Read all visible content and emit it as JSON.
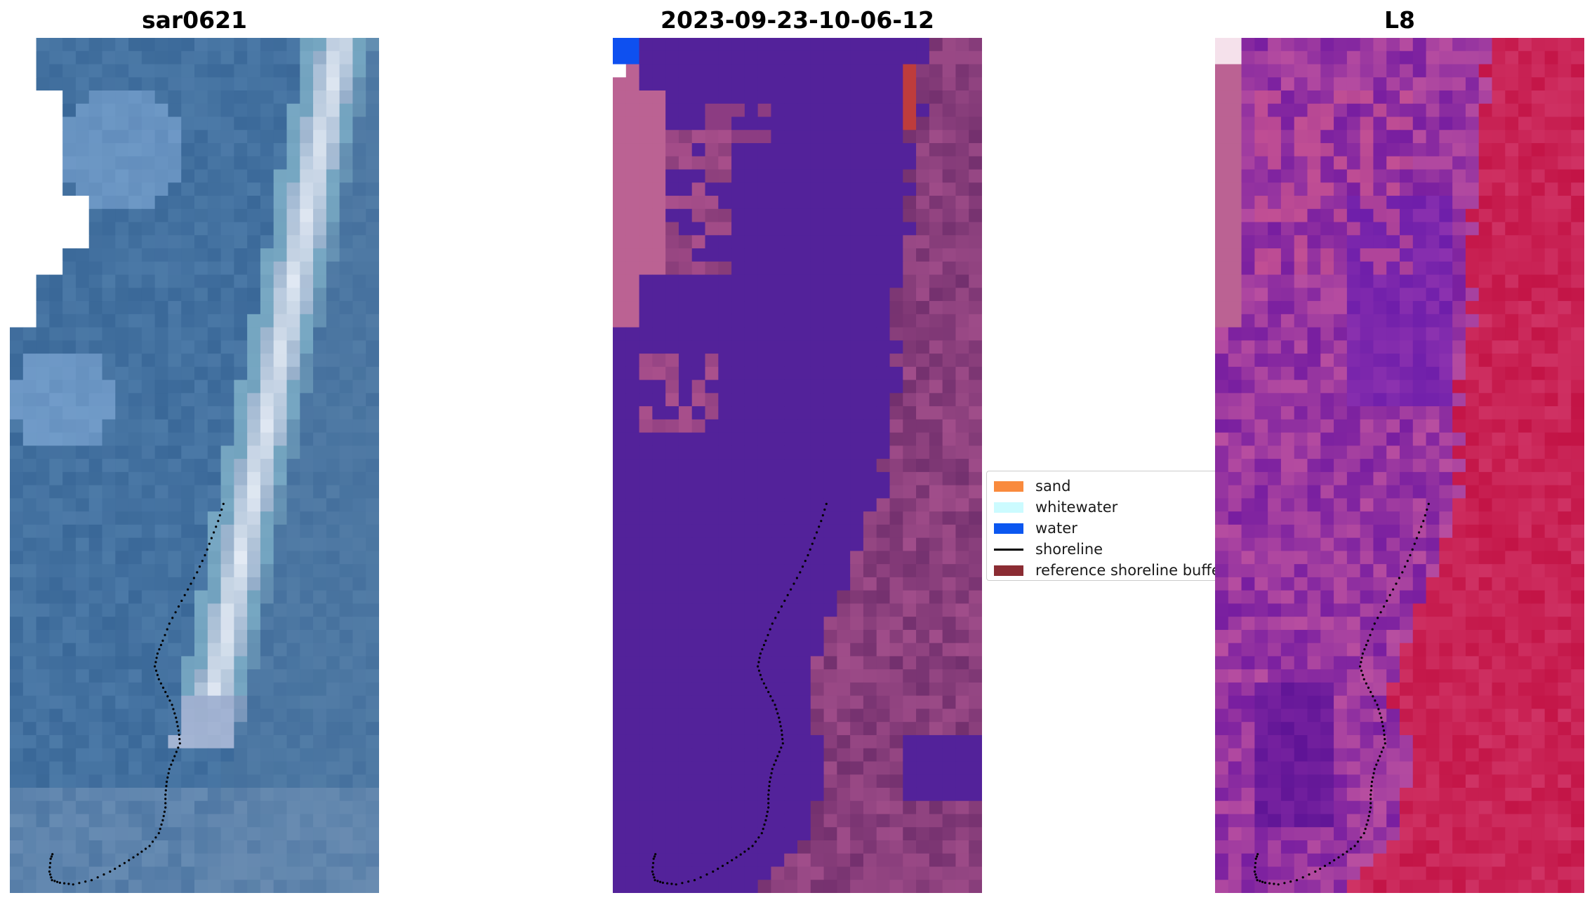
{
  "panels": [
    {
      "id": "left",
      "title": "sar0621",
      "palette": "satellite-rgb"
    },
    {
      "id": "mid",
      "title": "2023-09-23-10-06-12",
      "palette": "classified-purple"
    },
    {
      "id": "right",
      "title": "L8",
      "palette": "false-color-red"
    }
  ],
  "legend": {
    "items": [
      {
        "label": "sand",
        "type": "patch",
        "color": "#f98a3d"
      },
      {
        "label": "whitewater",
        "type": "patch",
        "color": "#ccfbff"
      },
      {
        "label": "water",
        "type": "patch",
        "color": "#0b57f0"
      },
      {
        "label": "shoreline",
        "type": "line",
        "color": "#000000"
      },
      {
        "label": "reference shoreline buffer",
        "type": "patch",
        "color": "#8b2c33"
      }
    ]
  },
  "colors": {
    "satellite_water": "#3e6e9e",
    "satellite_surf": "#e6eef6",
    "classified_water": "#53229a",
    "classified_land": "#7b3775",
    "classified_pink": "#bb6293",
    "false_color_purple": "#7b1f9e",
    "false_color_red": "#c51546",
    "nodata": "#ffffff",
    "shoreline_points": "#000000"
  }
}
